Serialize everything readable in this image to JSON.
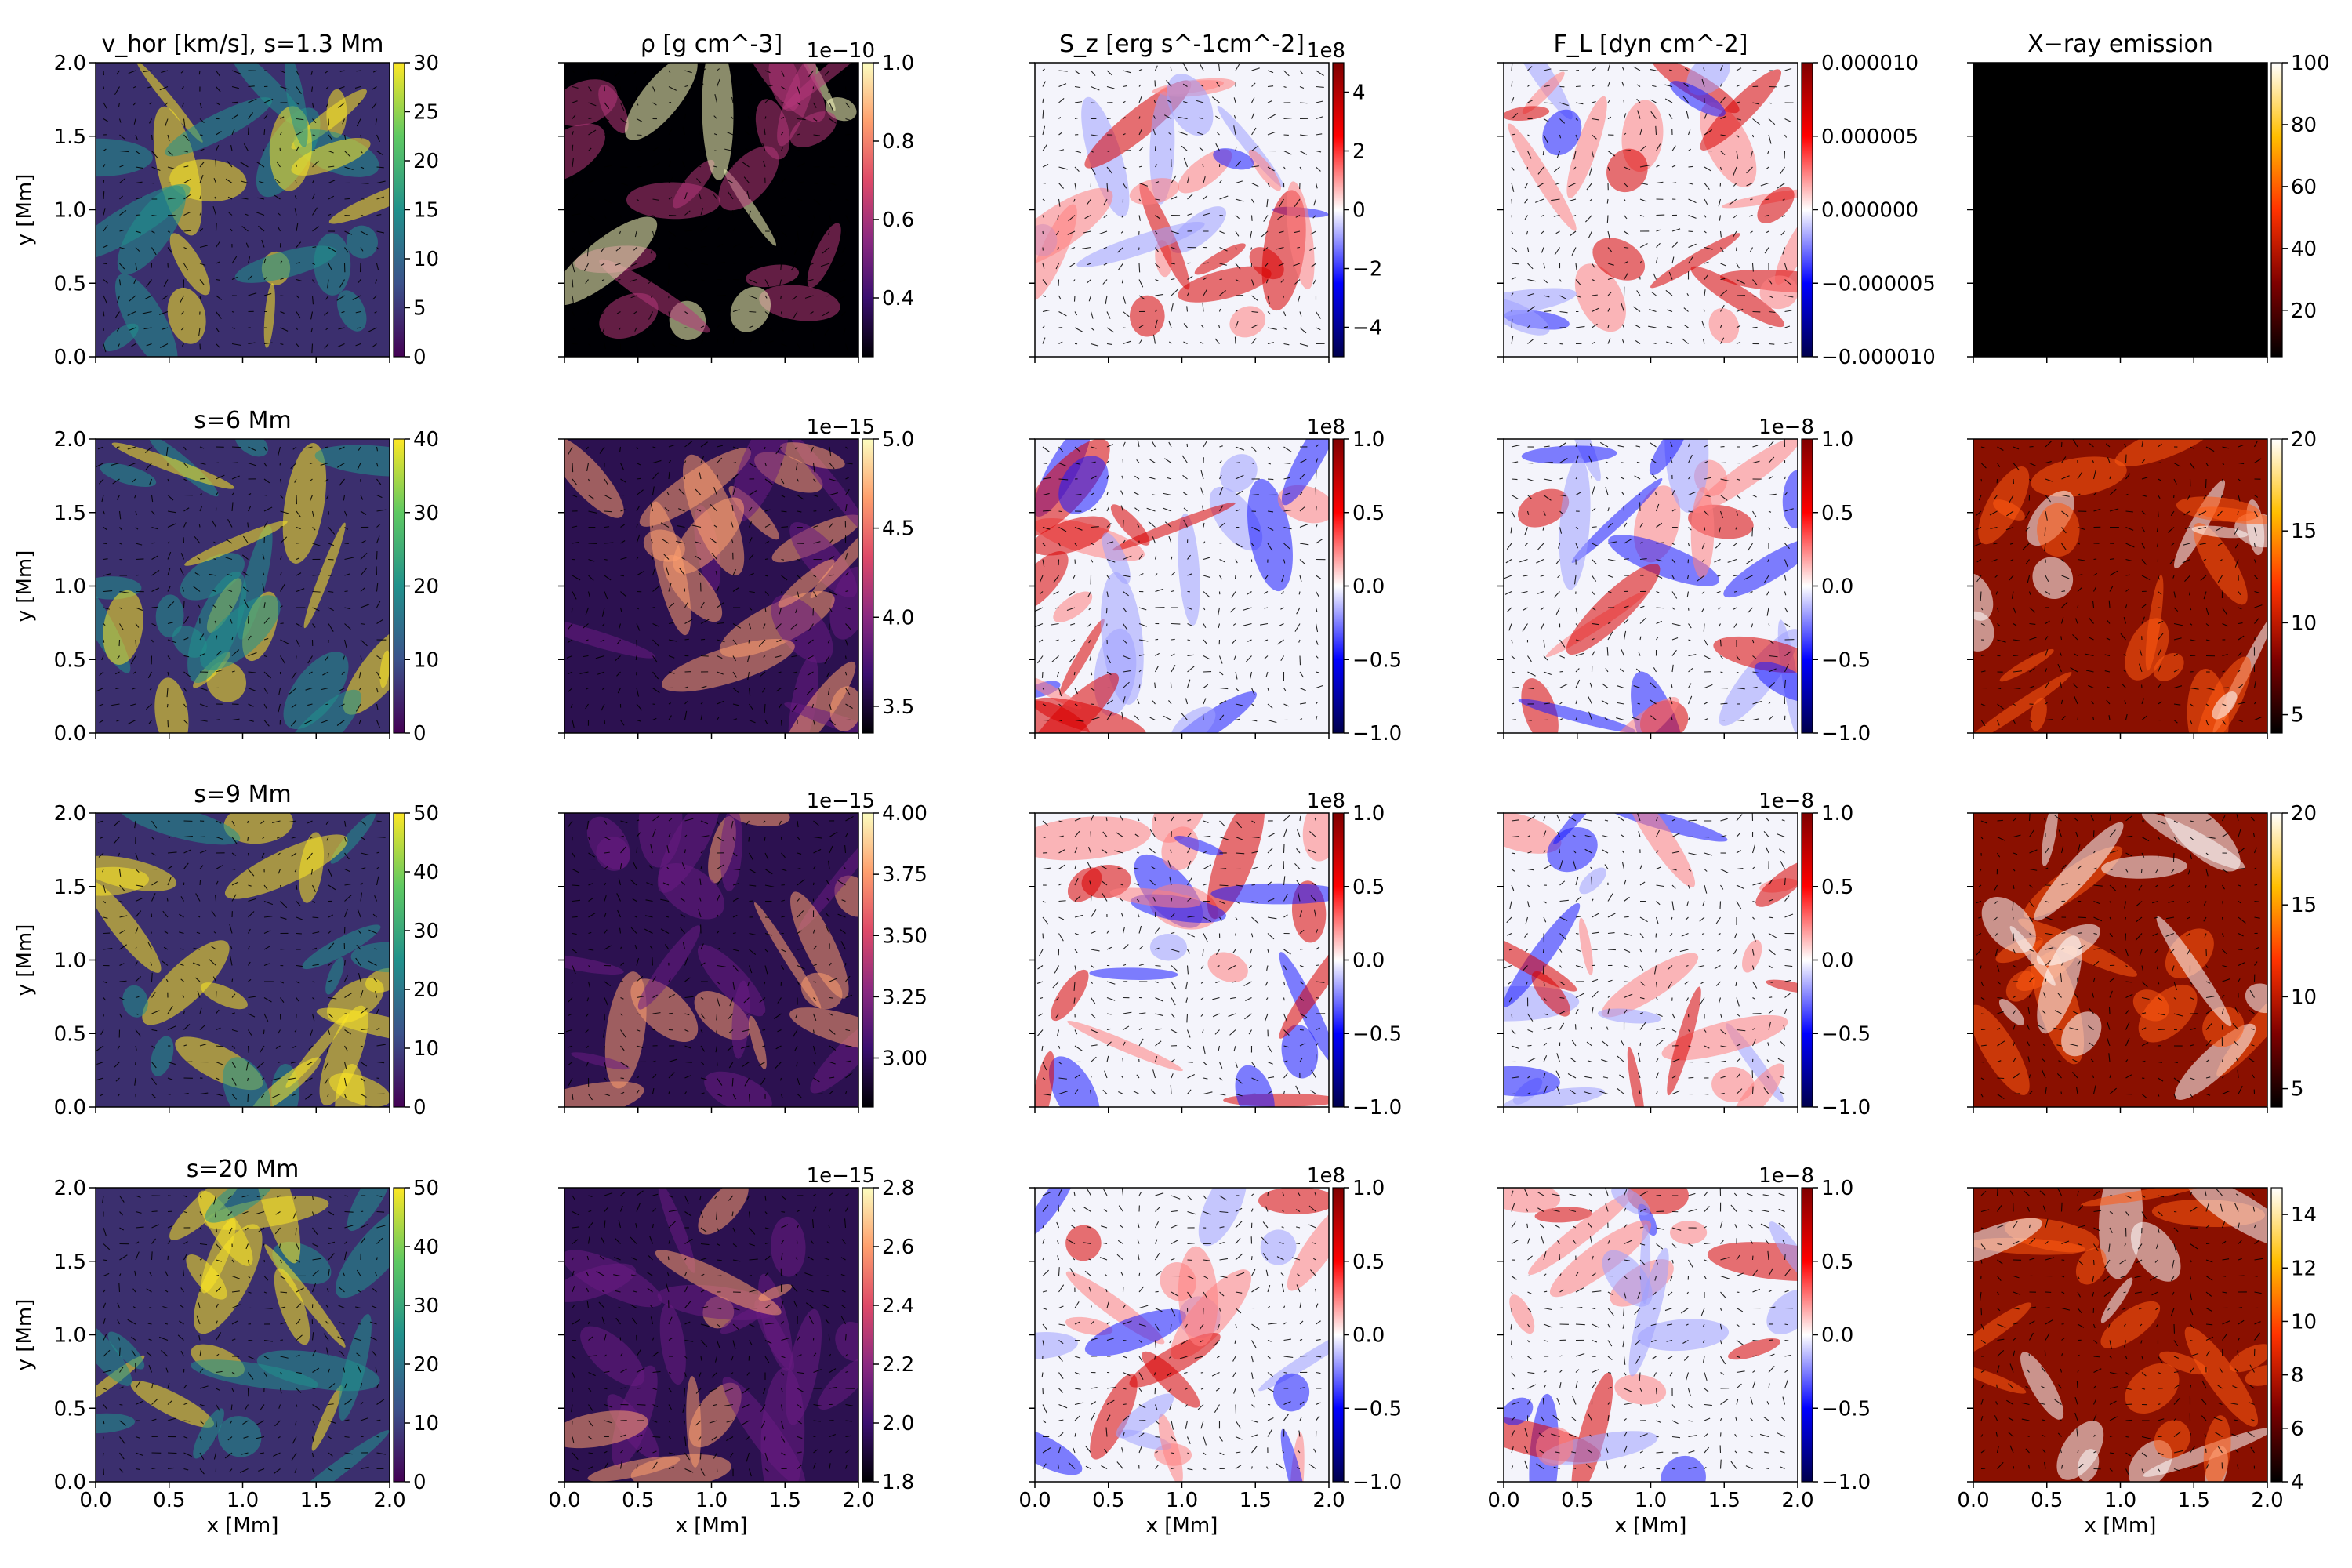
{
  "figure": {
    "x_label": "x [Mm]",
    "y_label": "y [Mm]",
    "x_ticks": [
      "0.0",
      "0.5",
      "1.0",
      "1.5",
      "2.0"
    ],
    "y_ticks": [
      "0.0",
      "0.5",
      "1.0",
      "1.5",
      "2.0"
    ],
    "titles": [
      "v_hor [km/s],  s=1.3 Mm",
      "ρ [g cm^-3]",
      "S_z [erg s^-1cm^-2]",
      "F_L [dyn cm^-2]",
      "X−ray emission"
    ],
    "row_labels": [
      "s=1.3 Mm",
      "s=6 Mm",
      "s=9 Mm",
      "s=20 Mm"
    ]
  },
  "chart_data": {
    "type": "heatmap",
    "description_grid": "4 rows (heights s) x 5 columns (quantities), each a 2D map over x,y in [0,2] Mm with overplotted velocity arrows",
    "xlim": [
      0,
      2
    ],
    "ylim": [
      0,
      2
    ],
    "columns": [
      {
        "quantity": "v_hor",
        "colormap": "viridis"
      },
      {
        "quantity": "rho",
        "colormap": "magma"
      },
      {
        "quantity": "S_z",
        "colormap": "seismic"
      },
      {
        "quantity": "F_L",
        "colormap": "seismic"
      },
      {
        "quantity": "X-ray emission",
        "colormap": "gist_heat"
      }
    ],
    "colorbars": [
      [
        {
          "ticks": [
            "0",
            "5",
            "10",
            "15",
            "20",
            "25",
            "30"
          ],
          "range": [
            0,
            30
          ],
          "scale": ""
        },
        {
          "ticks": [
            "0.4",
            "0.6",
            "0.8",
            "1.0"
          ],
          "range": [
            0.25,
            1.0
          ],
          "scale": "1e−10"
        },
        {
          "ticks": [
            "−4",
            "−2",
            "0",
            "2",
            "4"
          ],
          "range": [
            -5,
            5
          ],
          "scale": "1e8"
        },
        {
          "ticks": [
            "−0.000010",
            "−0.000005",
            "0.000000",
            "0.000005",
            "0.000010"
          ],
          "range": [
            -1e-05,
            1e-05
          ],
          "scale": ""
        },
        {
          "ticks": [
            "20",
            "40",
            "60",
            "80",
            "100"
          ],
          "range": [
            5,
            100
          ],
          "scale": ""
        }
      ],
      [
        {
          "ticks": [
            "0",
            "10",
            "20",
            "30",
            "40"
          ],
          "range": [
            0,
            40
          ],
          "scale": ""
        },
        {
          "ticks": [
            "3.5",
            "4.0",
            "4.5",
            "5.0"
          ],
          "range": [
            3.35,
            5.0
          ],
          "scale": "1e−15"
        },
        {
          "ticks": [
            "−1.0",
            "−0.5",
            "0.0",
            "0.5",
            "1.0"
          ],
          "range": [
            -1,
            1
          ],
          "scale": "1e8"
        },
        {
          "ticks": [
            "−1.0",
            "−0.5",
            "0.0",
            "0.5",
            "1.0"
          ],
          "range": [
            -1,
            1
          ],
          "scale": "1e−8"
        },
        {
          "ticks": [
            "5",
            "10",
            "15",
            "20"
          ],
          "range": [
            4,
            20
          ],
          "scale": ""
        }
      ],
      [
        {
          "ticks": [
            "0",
            "10",
            "20",
            "30",
            "40",
            "50"
          ],
          "range": [
            0,
            50
          ],
          "scale": ""
        },
        {
          "ticks": [
            "3.00",
            "3.25",
            "3.50",
            "3.75",
            "4.00"
          ],
          "range": [
            2.8,
            4.0
          ],
          "scale": "1e−15"
        },
        {
          "ticks": [
            "−1.0",
            "−0.5",
            "0.0",
            "0.5",
            "1.0"
          ],
          "range": [
            -1,
            1
          ],
          "scale": "1e8"
        },
        {
          "ticks": [
            "−1.0",
            "−0.5",
            "0.0",
            "0.5",
            "1.0"
          ],
          "range": [
            -1,
            1
          ],
          "scale": "1e−8"
        },
        {
          "ticks": [
            "5",
            "10",
            "15",
            "20"
          ],
          "range": [
            4,
            20
          ],
          "scale": ""
        }
      ],
      [
        {
          "ticks": [
            "0",
            "10",
            "20",
            "30",
            "40",
            "50"
          ],
          "range": [
            0,
            50
          ],
          "scale": ""
        },
        {
          "ticks": [
            "1.8",
            "2.0",
            "2.2",
            "2.4",
            "2.6",
            "2.8"
          ],
          "range": [
            1.8,
            2.8
          ],
          "scale": "1e−15"
        },
        {
          "ticks": [
            "−1.0",
            "−0.5",
            "0.0",
            "0.5",
            "1.0"
          ],
          "range": [
            -1,
            1
          ],
          "scale": "1e8"
        },
        {
          "ticks": [
            "−1.0",
            "−0.5",
            "0.0",
            "0.5",
            "1.0"
          ],
          "range": [
            -1,
            1
          ],
          "scale": "1e−8"
        },
        {
          "ticks": [
            "4",
            "6",
            "8",
            "10",
            "12",
            "14"
          ],
          "range": [
            4,
            15
          ],
          "scale": ""
        }
      ]
    ]
  }
}
